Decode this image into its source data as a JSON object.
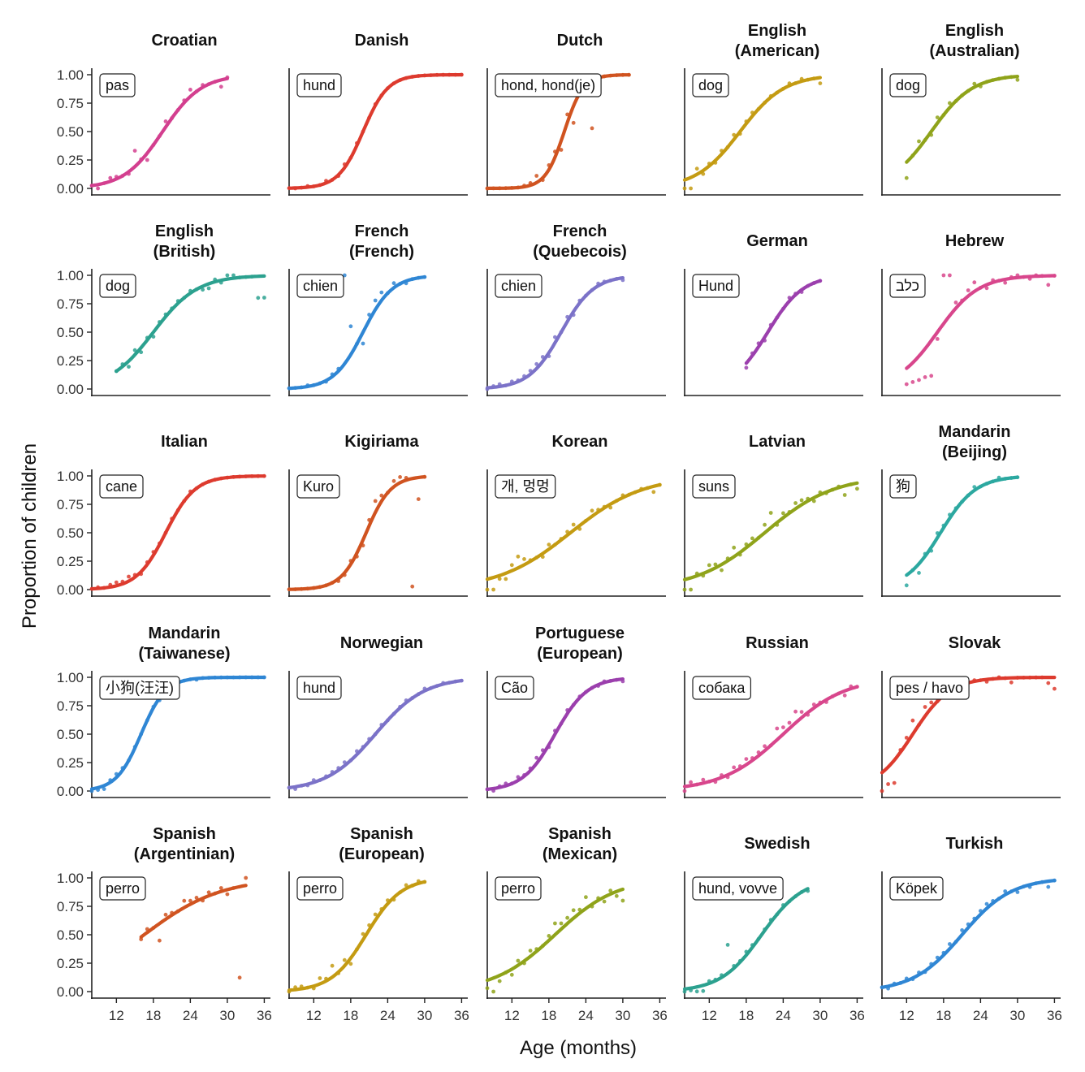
{
  "chart_data": {
    "type": "scatter",
    "xlabel": "Age (months)",
    "ylabel": "Proportion of children",
    "x_ticks": [
      12,
      18,
      24,
      30,
      36
    ],
    "y_ticks": [
      "0.00",
      "0.25",
      "0.50",
      "0.75",
      "1.00"
    ],
    "xlim": [
      8,
      37
    ],
    "ylim": [
      0,
      1
    ],
    "grid": false,
    "legend": "none",
    "panels": [
      {
        "title_lines": [
          "Croatian"
        ],
        "word": "pas",
        "color": "#d33f8f",
        "x_range": [
          8,
          30
        ],
        "mid": 19.5,
        "slope": 0.32,
        "offsets": [
          0,
          -0.04,
          0,
          0.03,
          0.02,
          0,
          -0.02,
          0.14,
          0.01,
          -0.06,
          0,
          0,
          0.05,
          0,
          0,
          0.02,
          0.06,
          0,
          0.02,
          0,
          0,
          -0.06,
          0.01
        ]
      },
      {
        "title_lines": [
          "Danish"
        ],
        "word": "hund",
        "color": "#dd3b2e",
        "x_range": [
          8,
          36
        ],
        "mid": 20,
        "slope": 0.5,
        "offsets": [
          0,
          -0.01,
          0,
          0.01,
          0,
          0,
          0.02,
          0,
          -0.01,
          0.03,
          0,
          0.02,
          0,
          0,
          0.01,
          0,
          0,
          0,
          0,
          0,
          0,
          0,
          0,
          0,
          0,
          0,
          0,
          0,
          0
        ]
      },
      {
        "title_lines": [
          "Dutch"
        ],
        "word": "hond, hond(je)",
        "color": "#d05320",
        "x_range": [
          8,
          31
        ],
        "mid": 20.5,
        "slope": 0.65,
        "offsets": [
          0,
          0,
          0,
          0,
          0,
          0,
          0.01,
          0.02,
          0.06,
          -0.02,
          0.04,
          0.05,
          -0.08,
          0.07,
          -0.15,
          0,
          0,
          -0.42,
          0,
          0,
          0,
          0,
          0,
          0
        ]
      },
      {
        "title_lines": [
          "English",
          "(American)"
        ],
        "word": "dog",
        "color": "#c49b12",
        "x_range": [
          8,
          30
        ],
        "mid": 17,
        "slope": 0.28,
        "offsets": [
          -0.08,
          -0.1,
          0.05,
          -0.03,
          0.02,
          -0.02,
          0.03,
          0,
          0.04,
          -0.02,
          0.02,
          0.03,
          0,
          0,
          0.01,
          0,
          0,
          0.02,
          0,
          0.02,
          0,
          0,
          -0.05
        ]
      },
      {
        "title_lines": [
          "English",
          "(Australian)"
        ],
        "word": "dog",
        "color": "#8fa31a",
        "x_range": [
          12,
          30
        ],
        "mid": 16,
        "slope": 0.3,
        "offsets": [
          -0.14,
          0,
          0.06,
          0,
          -0.03,
          0.05,
          0,
          0.04,
          0,
          0,
          0,
          0.03,
          -0.02,
          0,
          0,
          0,
          0,
          0,
          -0.03
        ]
      },
      {
        "title_lines": [
          "English",
          "(British)"
        ],
        "word": "dog",
        "color": "#2ca18f",
        "x_range": [
          12,
          36
        ],
        "mid": 18,
        "slope": 0.28,
        "offsets": [
          0,
          0.02,
          -0.05,
          0.04,
          -0.04,
          0.02,
          -0.04,
          0.02,
          0.02,
          0.01,
          0.02,
          0,
          0.02,
          0,
          -0.03,
          -0.04,
          0.02,
          -0.02,
          0.05,
          0.03,
          0,
          0,
          0,
          -0.19,
          -0.19
        ]
      },
      {
        "title_lines": [
          "French",
          "(French)"
        ],
        "word": "chien",
        "color": "#2f86d4",
        "x_range": [
          8,
          30
        ],
        "mid": 20,
        "slope": 0.42,
        "offsets": [
          0,
          0,
          0,
          0.01,
          0,
          0,
          -0.01,
          0.02,
          0.02,
          0.78,
          0.25,
          0,
          -0.1,
          0.05,
          0.08,
          0.07,
          0,
          0.04,
          0,
          -0.02,
          0,
          0,
          0
        ]
      },
      {
        "title_lines": [
          "French",
          "(Quebecois)"
        ],
        "word": "chien",
        "color": "#7b72c8",
        "x_range": [
          8,
          30
        ],
        "mid": 20,
        "slope": 0.38,
        "offsets": [
          -0.02,
          0.01,
          0.02,
          0,
          0.02,
          0.01,
          0.02,
          0.03,
          0.04,
          0.04,
          -0.03,
          0.05,
          0,
          0.04,
          -0.03,
          0.02,
          0,
          0,
          0.02,
          0.01,
          0,
          0,
          -0.02
        ]
      },
      {
        "title_lines": [
          "German"
        ],
        "word": "Hund",
        "color": "#9b3fad",
        "x_range": [
          18,
          30
        ],
        "mid": 21.5,
        "slope": 0.35,
        "offsets": [
          -0.04,
          0.02,
          0.03,
          -0.03,
          0.02,
          0,
          0,
          0.03,
          0.01,
          -0.02,
          0,
          0,
          0
        ]
      },
      {
        "title_lines": [
          "Hebrew"
        ],
        "word": "כלב",
        "color": "#d8468c",
        "x_range": [
          12,
          36
        ],
        "mid": 17,
        "slope": 0.3,
        "offsets": [
          -0.14,
          -0.17,
          -0.21,
          -0.25,
          -0.31,
          -0.06,
          0.5,
          0.38,
          0.05,
          0.01,
          0.05,
          0.08,
          0,
          -0.03,
          0.02,
          0,
          -0.03,
          0.01,
          0.03,
          0,
          -0.02,
          0.01,
          0,
          -0.08,
          0
        ]
      },
      {
        "title_lines": [
          "Italian"
        ],
        "word": "cane",
        "color": "#dd3b2e",
        "x_range": [
          8,
          36
        ],
        "mid": 20,
        "slope": 0.42,
        "offsets": [
          0,
          0.01,
          0,
          0.02,
          0.03,
          0.02,
          0.04,
          0.02,
          -0.02,
          0.02,
          0.03,
          0.01,
          0,
          0.02,
          0,
          0,
          0.02,
          0,
          0,
          0,
          0,
          0,
          0,
          0,
          0,
          0,
          0,
          0,
          0
        ]
      },
      {
        "title_lines": [
          "Kigiriama"
        ],
        "word": "Kuro",
        "color": "#d05320",
        "x_range": [
          8,
          30
        ],
        "mid": 20.5,
        "slope": 0.5,
        "offsets": [
          0,
          0,
          0,
          0,
          0,
          0,
          0,
          0,
          -0.02,
          -0.02,
          0.03,
          -0.03,
          -0.05,
          0.05,
          0.1,
          0.05,
          0,
          0.05,
          0.05,
          0.02,
          -0.95,
          -0.19,
          0
        ]
      },
      {
        "title_lines": [
          "Korean"
        ],
        "word": "개, 멍멍",
        "color": "#c49b12",
        "x_range": [
          8,
          36
        ],
        "mid": 21.5,
        "slope": 0.17,
        "offsets": [
          -0.12,
          -0.13,
          -0.03,
          -0.05,
          0.05,
          0.1,
          0.05,
          0.01,
          0,
          -0.03,
          0.04,
          0,
          0.01,
          0.03,
          0.05,
          -0.03,
          0,
          0.05,
          0.02,
          0.01,
          -0.03,
          0,
          0.02,
          0,
          0,
          0.01,
          0,
          -0.05,
          0
        ]
      },
      {
        "title_lines": [
          "Latvian"
        ],
        "word": "suns",
        "color": "#8fa31a",
        "x_range": [
          8,
          36
        ],
        "mid": 21,
        "slope": 0.18,
        "offsets": [
          -0.12,
          -0.13,
          0.02,
          -0.02,
          0.05,
          0.03,
          -0.05,
          0.02,
          0.08,
          -0.02,
          0.03,
          0.04,
          0,
          0.07,
          0.13,
          -0.02,
          0.04,
          0.01,
          0.05,
          0.04,
          0.02,
          -0.03,
          0.02,
          -0.01,
          0,
          0.01,
          -0.08,
          0,
          -0.05
        ]
      },
      {
        "title_lines": [
          "Mandarin",
          "(Beijing)"
        ],
        "word": "狗",
        "color": "#2ca8a0",
        "x_range": [
          12,
          30
        ],
        "mid": 17.5,
        "slope": 0.35,
        "offsets": [
          -0.09,
          0,
          -0.08,
          0.02,
          -0.03,
          0.04,
          0.02,
          0.03,
          0.01,
          0,
          0,
          0.03,
          0,
          0,
          0,
          0.02,
          0,
          0,
          0
        ]
      },
      {
        "title_lines": [
          "Mandarin",
          "(Taiwanese)"
        ],
        "word": "小狗(汪汪)",
        "color": "#2f86d4",
        "x_range": [
          8,
          36
        ],
        "mid": 16,
        "slope": 0.5,
        "offsets": [
          -0.03,
          -0.02,
          -0.03,
          0.02,
          0.03,
          0.02,
          0,
          0.01,
          0,
          0,
          0.01,
          -0.02,
          0,
          0.02,
          0,
          0,
          0,
          -0.01,
          0,
          0,
          0,
          0,
          0,
          0,
          0,
          0,
          0,
          0,
          0
        ]
      },
      {
        "title_lines": [
          "Norwegian"
        ],
        "word": "hund",
        "color": "#7b72c8",
        "x_range": [
          8,
          36
        ],
        "mid": 22,
        "slope": 0.25,
        "offsets": [
          0,
          -0.02,
          0,
          -0.01,
          0.02,
          0,
          0.01,
          0.02,
          0.02,
          0.03,
          0,
          0.03,
          0.01,
          0.02,
          0,
          0.02,
          0,
          0,
          0.01,
          0.02,
          0,
          0,
          0.02,
          0,
          0,
          0.01,
          0,
          0,
          0
        ]
      },
      {
        "title_lines": [
          "Portuguese",
          "(European)"
        ],
        "word": "Cão",
        "color": "#9b3fad",
        "x_range": [
          8,
          30
        ],
        "mid": 19,
        "slope": 0.38,
        "offsets": [
          0,
          -0.02,
          0.01,
          0.02,
          0,
          0.03,
          0.01,
          0.02,
          0.05,
          0.04,
          -0.02,
          0.03,
          0,
          0.03,
          0,
          0.01,
          0,
          0,
          -0.01,
          0.01,
          0,
          0,
          -0.02
        ]
      },
      {
        "title_lines": [
          "Russian"
        ],
        "word": "собака",
        "color": "#d8468c",
        "x_range": [
          8,
          36
        ],
        "mid": 24,
        "slope": 0.2,
        "offsets": [
          -0.04,
          0.03,
          0,
          0.03,
          0,
          -0.02,
          0.02,
          -0.02,
          0.04,
          0.02,
          0.05,
          0.02,
          0.03,
          0.04,
          0,
          0.1,
          0.06,
          0.05,
          0.1,
          0.05,
          -0.02,
          0.03,
          0.01,
          -0.02,
          0,
          0,
          -0.04,
          0.02,
          0
        ]
      },
      {
        "title_lines": [
          "Slovak"
        ],
        "word": "pes / havo",
        "color": "#dd3b2e",
        "x_range": [
          8,
          36
        ],
        "mid": 13,
        "slope": 0.33,
        "offsets": [
          -0.25,
          -0.15,
          -0.2,
          0.02,
          0.05,
          0.12,
          0,
          0.08,
          0.05,
          0,
          0.02,
          0,
          0.02,
          -0.02,
          0,
          0.01,
          0,
          -0.02,
          0,
          0.01,
          0,
          -0.04,
          0,
          0,
          0,
          0,
          0,
          -0.05,
          -0.1
        ]
      },
      {
        "title_lines": [
          "Spanish",
          "(Argentinian)"
        ],
        "word": "perro",
        "color": "#d05320",
        "x_range": [
          16,
          33
        ],
        "mid": 16.5,
        "slope": 0.16,
        "offsets": [
          -0.02,
          0.03,
          0,
          -0.15,
          0.04,
          0.02,
          0,
          0.06,
          0.03,
          0.03,
          -0.02,
          0.03,
          0,
          0.03,
          -0.04,
          0,
          -0.8,
          0.15
        ]
      },
      {
        "title_lines": [
          "Spanish",
          "(European)"
        ],
        "word": "perro",
        "color": "#c49b12",
        "x_range": [
          8,
          30
        ],
        "mid": 20.5,
        "slope": 0.35,
        "offsets": [
          -0.02,
          0.02,
          0.02,
          0,
          -0.02,
          0.05,
          0.02,
          0.1,
          -0.01,
          0.05,
          -0.05,
          0,
          0.05,
          0.04,
          0.05,
          0.02,
          0.03,
          -0.02,
          0,
          0.03,
          0,
          0.02,
          0
        ]
      },
      {
        "title_lines": [
          "Spanish",
          "(Mexican)"
        ],
        "word": "perro",
        "color": "#8fa31a",
        "x_range": [
          8,
          30
        ],
        "mid": 19,
        "slope": 0.2,
        "offsets": [
          -0.07,
          -0.12,
          -0.05,
          0,
          -0.05,
          0.04,
          -0.02,
          0.05,
          0.02,
          0,
          0.04,
          0.1,
          0.05,
          0.05,
          0.07,
          0.03,
          0.1,
          -0.02,
          0.02,
          -0.04,
          0.03,
          -0.04,
          -0.1
        ]
      },
      {
        "title_lines": [
          "Swedish"
        ],
        "word": "hund, vovve",
        "color": "#2ca18f",
        "x_range": [
          8,
          28
        ],
        "mid": 20.5,
        "slope": 0.3,
        "offsets": [
          -0.04,
          -0.02,
          -0.04,
          -0.05,
          0.02,
          0.01,
          0.02,
          0.25,
          0.02,
          0.01,
          0.03,
          0.02,
          0,
          0.01,
          0.02,
          0,
          0.02,
          0,
          0,
          0,
          -0.02
        ]
      },
      {
        "title_lines": [
          "Turkish"
        ],
        "word": "Köpek",
        "color": "#2f86d4",
        "x_range": [
          8,
          36
        ],
        "mid": 21,
        "slope": 0.25,
        "offsets": [
          0,
          -0.02,
          0.01,
          0,
          0.02,
          -0.01,
          0.02,
          -0.01,
          0.02,
          0.03,
          0.02,
          0.04,
          0,
          0.04,
          0.03,
          0.02,
          0.03,
          0.04,
          0.02,
          0,
          0.03,
          0,
          -0.03,
          0,
          -0.02,
          0,
          0,
          -0.05,
          0
        ]
      }
    ]
  }
}
